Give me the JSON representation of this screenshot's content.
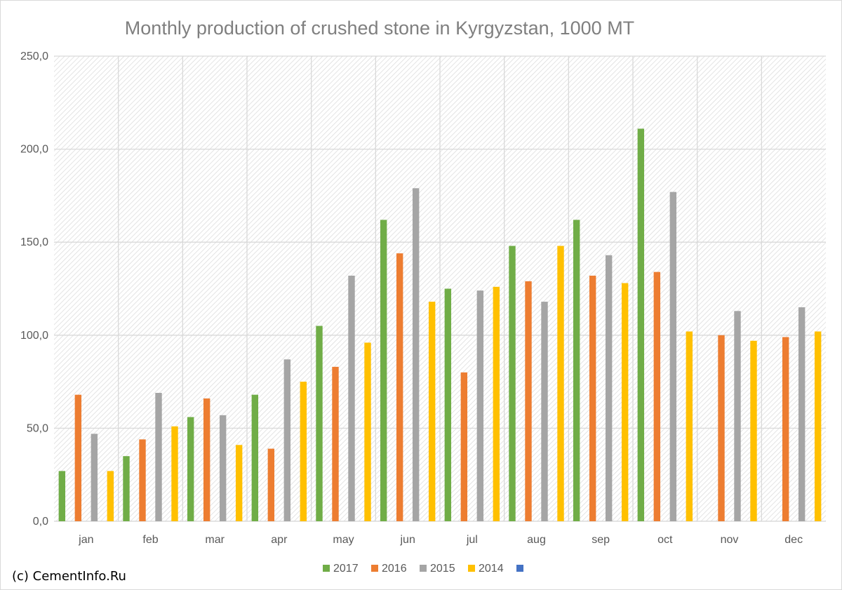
{
  "credit": "(c) CementInfo.Ru",
  "chart_data": {
    "type": "bar",
    "title": "Monthly production of crushed stone in Kyrgyzstan, 1000 MT",
    "xlabel": "",
    "ylabel": "",
    "ylim": [
      0,
      250
    ],
    "yticks": [
      0,
      50,
      100,
      150,
      200,
      250
    ],
    "ytick_labels": [
      "0,0",
      "50,0",
      "100,0",
      "150,0",
      "200,0",
      "250,0"
    ],
    "grid": true,
    "legend_position": "bottom",
    "categories": [
      "jan",
      "feb",
      "mar",
      "apr",
      "may",
      "jun",
      "jul",
      "aug",
      "sep",
      "oct",
      "nov",
      "dec"
    ],
    "series": [
      {
        "name": "2017",
        "color": "#70ad47",
        "values": [
          27,
          35,
          56,
          68,
          105,
          162,
          125,
          148,
          162,
          211,
          null,
          null
        ]
      },
      {
        "name": "2016",
        "color": "#ed7d31",
        "values": [
          68,
          44,
          66,
          39,
          83,
          144,
          80,
          129,
          132,
          134,
          100,
          99
        ]
      },
      {
        "name": "2015",
        "color": "#a5a5a5",
        "values": [
          47,
          69,
          57,
          87,
          132,
          179,
          124,
          118,
          143,
          177,
          113,
          115
        ]
      },
      {
        "name": "2014",
        "color": "#ffc000",
        "values": [
          27,
          51,
          41,
          75,
          96,
          118,
          126,
          148,
          128,
          102,
          97,
          102
        ]
      },
      {
        "name": "",
        "color": "#4472c4",
        "values": [
          null,
          null,
          null,
          null,
          null,
          null,
          null,
          null,
          null,
          null,
          null,
          null
        ]
      }
    ]
  }
}
